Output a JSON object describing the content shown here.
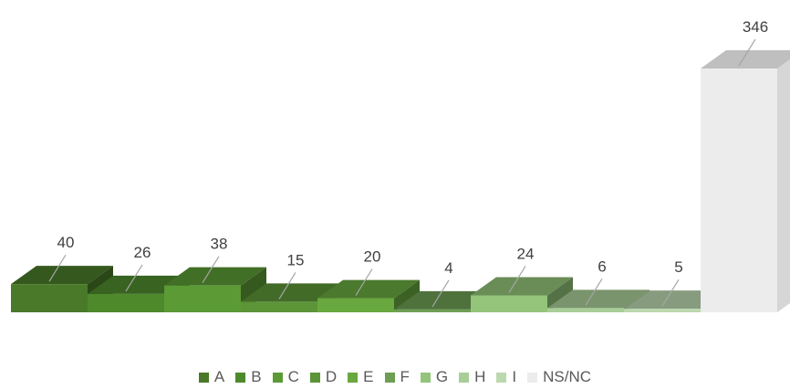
{
  "chart_data": {
    "type": "bar",
    "style": "3d",
    "categories": [
      "A",
      "B",
      "C",
      "D",
      "E",
      "F",
      "G",
      "H",
      "I",
      "NS/NC"
    ],
    "values": [
      40,
      26,
      38,
      15,
      20,
      4,
      24,
      6,
      5,
      346
    ],
    "value_labels": [
      "40",
      "26",
      "38",
      "15",
      "20",
      "4",
      "24",
      "6",
      "5",
      "346"
    ],
    "colors": [
      "#4a7a29",
      "#4e8a2c",
      "#5b9a35",
      "#5c9438",
      "#68a83e",
      "#6e9e54",
      "#93c479",
      "#a9cd98",
      "#bcd8af",
      "#ececec"
    ],
    "title": "",
    "xlabel": "",
    "ylabel": "",
    "legend_position": "bottom",
    "grid": false
  }
}
